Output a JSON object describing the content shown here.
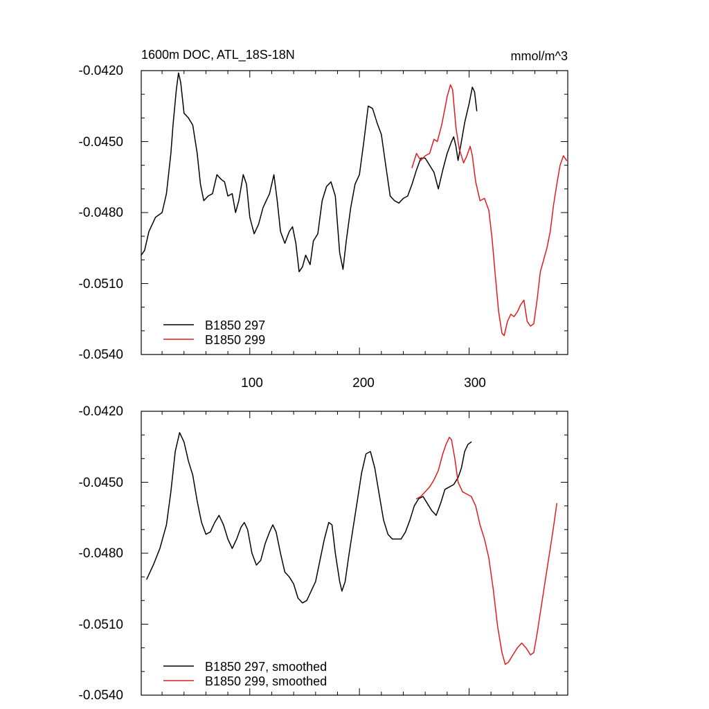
{
  "chart_data": [
    {
      "type": "line",
      "title": "1600m DOC, ATL_18S-18N",
      "units_label": "mmol/m^3",
      "xlim": [
        1,
        390
      ],
      "ylim": [
        -0.054,
        -0.042
      ],
      "x_ticks": [
        100,
        200,
        300
      ],
      "y_ticks": [
        -0.054,
        -0.051,
        -0.048,
        -0.045,
        -0.042
      ],
      "y_tick_labels": [
        "-0.0540",
        "-0.0510",
        "-0.0480",
        "-0.0450",
        "-0.0420"
      ],
      "x_tick_labels": [
        "100",
        "200",
        "300"
      ],
      "legend_position": "bottom-left",
      "series": [
        {
          "name": "B1850 297",
          "color": "#000000",
          "points": [
            [
              1,
              -0.0498
            ],
            [
              4,
              -0.0496
            ],
            [
              8,
              -0.0488
            ],
            [
              14,
              -0.0482
            ],
            [
              20,
              -0.048
            ],
            [
              24,
              -0.0472
            ],
            [
              28,
              -0.0455
            ],
            [
              30,
              -0.0443
            ],
            [
              33,
              -0.0428
            ],
            [
              35,
              -0.0421
            ],
            [
              37,
              -0.0425
            ],
            [
              40,
              -0.0438
            ],
            [
              44,
              -0.044
            ],
            [
              48,
              -0.0443
            ],
            [
              52,
              -0.0455
            ],
            [
              55,
              -0.0468
            ],
            [
              58,
              -0.0475
            ],
            [
              62,
              -0.0473
            ],
            [
              66,
              -0.0472
            ],
            [
              70,
              -0.0464
            ],
            [
              74,
              -0.0466
            ],
            [
              77,
              -0.0467
            ],
            [
              80,
              -0.0473
            ],
            [
              84,
              -0.0472
            ],
            [
              87,
              -0.048
            ],
            [
              90,
              -0.0475
            ],
            [
              94,
              -0.0464
            ],
            [
              97,
              -0.0468
            ],
            [
              100,
              -0.0482
            ],
            [
              104,
              -0.0489
            ],
            [
              108,
              -0.0485
            ],
            [
              112,
              -0.0478
            ],
            [
              115,
              -0.0475
            ],
            [
              118,
              -0.0472
            ],
            [
              122,
              -0.0464
            ],
            [
              125,
              -0.0475
            ],
            [
              128,
              -0.0488
            ],
            [
              132,
              -0.0493
            ],
            [
              136,
              -0.0488
            ],
            [
              139,
              -0.0486
            ],
            [
              142,
              -0.0493
            ],
            [
              145,
              -0.0505
            ],
            [
              148,
              -0.0503
            ],
            [
              151,
              -0.0498
            ],
            [
              155,
              -0.0502
            ],
            [
              158,
              -0.0492
            ],
            [
              162,
              -0.0489
            ],
            [
              166,
              -0.0475
            ],
            [
              170,
              -0.0469
            ],
            [
              174,
              -0.0467
            ],
            [
              178,
              -0.0473
            ],
            [
              182,
              -0.0497
            ],
            [
              185,
              -0.0504
            ],
            [
              188,
              -0.0492
            ],
            [
              192,
              -0.0478
            ],
            [
              196,
              -0.0468
            ],
            [
              200,
              -0.0464
            ],
            [
              204,
              -0.045
            ],
            [
              208,
              -0.0435
            ],
            [
              212,
              -0.0436
            ],
            [
              216,
              -0.0442
            ],
            [
              220,
              -0.0447
            ],
            [
              224,
              -0.046
            ],
            [
              228,
              -0.0473
            ],
            [
              232,
              -0.0475
            ],
            [
              236,
              -0.0476
            ],
            [
              240,
              -0.0474
            ],
            [
              244,
              -0.0473
            ],
            [
              248,
              -0.0468
            ],
            [
              252,
              -0.0462
            ],
            [
              256,
              -0.0457
            ],
            [
              260,
              -0.0457
            ],
            [
              264,
              -0.046
            ],
            [
              268,
              -0.0463
            ],
            [
              272,
              -0.047
            ],
            [
              276,
              -0.0462
            ],
            [
              280,
              -0.0455
            ],
            [
              284,
              -0.045
            ],
            [
              286,
              -0.0448
            ],
            [
              288,
              -0.0452
            ],
            [
              290,
              -0.0458
            ],
            [
              293,
              -0.045
            ],
            [
              296,
              -0.0442
            ],
            [
              300,
              -0.0434
            ],
            [
              303,
              -0.0427
            ],
            [
              305,
              -0.0429
            ],
            [
              307,
              -0.0437
            ]
          ]
        },
        {
          "name": "B1850 299",
          "color": "#e41a1c",
          "points": [
            [
              248,
              -0.0461
            ],
            [
              252,
              -0.0455
            ],
            [
              256,
              -0.0458
            ],
            [
              260,
              -0.0456
            ],
            [
              264,
              -0.0455
            ],
            [
              268,
              -0.0449
            ],
            [
              271,
              -0.045
            ],
            [
              275,
              -0.0443
            ],
            [
              278,
              -0.0436
            ],
            [
              280,
              -0.0431
            ],
            [
              283,
              -0.0426
            ],
            [
              285,
              -0.0428
            ],
            [
              288,
              -0.0444
            ],
            [
              291,
              -0.0453
            ],
            [
              295,
              -0.0459
            ],
            [
              298,
              -0.0456
            ],
            [
              301,
              -0.0452
            ],
            [
              303,
              -0.0456
            ],
            [
              306,
              -0.0467
            ],
            [
              310,
              -0.0475
            ],
            [
              314,
              -0.0474
            ],
            [
              318,
              -0.0479
            ],
            [
              321,
              -0.0491
            ],
            [
              324,
              -0.0507
            ],
            [
              327,
              -0.0522
            ],
            [
              330,
              -0.0531
            ],
            [
              332,
              -0.0532
            ],
            [
              335,
              -0.0526
            ],
            [
              338,
              -0.0523
            ],
            [
              341,
              -0.0524
            ],
            [
              344,
              -0.0522
            ],
            [
              347,
              -0.0519
            ],
            [
              350,
              -0.0517
            ],
            [
              353,
              -0.0526
            ],
            [
              356,
              -0.0528
            ],
            [
              359,
              -0.0527
            ],
            [
              362,
              -0.0517
            ],
            [
              365,
              -0.0505
            ],
            [
              368,
              -0.05
            ],
            [
              371,
              -0.0495
            ],
            [
              374,
              -0.0488
            ],
            [
              377,
              -0.0477
            ],
            [
              380,
              -0.0468
            ],
            [
              383,
              -0.046
            ],
            [
              386,
              -0.0456
            ],
            [
              389,
              -0.0458
            ]
          ]
        }
      ]
    },
    {
      "type": "line",
      "title": "",
      "xlim": [
        1,
        390
      ],
      "ylim": [
        -0.054,
        -0.042
      ],
      "x_ticks": [
        100,
        200,
        300
      ],
      "y_ticks": [
        -0.054,
        -0.051,
        -0.048,
        -0.045,
        -0.042
      ],
      "y_tick_labels": [
        "-0.0540",
        "-0.0510",
        "-0.0480",
        "-0.0450",
        "-0.0420"
      ],
      "legend_position": "bottom-left",
      "series": [
        {
          "name": "B1850 297, smoothed",
          "color": "#000000",
          "points": [
            [
              6,
              -0.0491
            ],
            [
              12,
              -0.0485
            ],
            [
              18,
              -0.0478
            ],
            [
              24,
              -0.0468
            ],
            [
              28,
              -0.0454
            ],
            [
              32,
              -0.0437
            ],
            [
              36,
              -0.0429
            ],
            [
              40,
              -0.0433
            ],
            [
              44,
              -0.0441
            ],
            [
              48,
              -0.0447
            ],
            [
              52,
              -0.0458
            ],
            [
              56,
              -0.0467
            ],
            [
              60,
              -0.0472
            ],
            [
              64,
              -0.0471
            ],
            [
              68,
              -0.0467
            ],
            [
              72,
              -0.0464
            ],
            [
              76,
              -0.0468
            ],
            [
              80,
              -0.0474
            ],
            [
              84,
              -0.0478
            ],
            [
              88,
              -0.0474
            ],
            [
              92,
              -0.0469
            ],
            [
              95,
              -0.0467
            ],
            [
              98,
              -0.047
            ],
            [
              102,
              -0.048
            ],
            [
              106,
              -0.0485
            ],
            [
              110,
              -0.0483
            ],
            [
              114,
              -0.0476
            ],
            [
              118,
              -0.0471
            ],
            [
              121,
              -0.0468
            ],
            [
              124,
              -0.0471
            ],
            [
              128,
              -0.048
            ],
            [
              132,
              -0.0488
            ],
            [
              136,
              -0.049
            ],
            [
              140,
              -0.0493
            ],
            [
              144,
              -0.0499
            ],
            [
              148,
              -0.0501
            ],
            [
              152,
              -0.05
            ],
            [
              156,
              -0.0496
            ],
            [
              160,
              -0.0492
            ],
            [
              164,
              -0.0483
            ],
            [
              168,
              -0.0474
            ],
            [
              172,
              -0.0467
            ],
            [
              175,
              -0.0468
            ],
            [
              178,
              -0.048
            ],
            [
              182,
              -0.0492
            ],
            [
              184,
              -0.0496
            ],
            [
              187,
              -0.0492
            ],
            [
              190,
              -0.0482
            ],
            [
              194,
              -0.047
            ],
            [
              198,
              -0.0458
            ],
            [
              202,
              -0.0446
            ],
            [
              206,
              -0.0438
            ],
            [
              210,
              -0.0437
            ],
            [
              214,
              -0.0444
            ],
            [
              218,
              -0.0455
            ],
            [
              222,
              -0.0466
            ],
            [
              226,
              -0.0472
            ],
            [
              230,
              -0.0474
            ],
            [
              234,
              -0.0474
            ],
            [
              238,
              -0.0474
            ],
            [
              242,
              -0.0471
            ],
            [
              246,
              -0.0466
            ],
            [
              250,
              -0.046
            ],
            [
              254,
              -0.0457
            ],
            [
              258,
              -0.0456
            ],
            [
              262,
              -0.0459
            ],
            [
              266,
              -0.0462
            ],
            [
              270,
              -0.0464
            ],
            [
              274,
              -0.0459
            ],
            [
              278,
              -0.0453
            ],
            [
              282,
              -0.0452
            ],
            [
              286,
              -0.0451
            ],
            [
              290,
              -0.0448
            ],
            [
              293,
              -0.0444
            ],
            [
              296,
              -0.0437
            ],
            [
              299,
              -0.0434
            ],
            [
              302,
              -0.0433
            ]
          ]
        },
        {
          "name": "B1850 299, smoothed",
          "color": "#e41a1c",
          "points": [
            [
              252,
              -0.0457
            ],
            [
              256,
              -0.0456
            ],
            [
              260,
              -0.0454
            ],
            [
              264,
              -0.0452
            ],
            [
              268,
              -0.0449
            ],
            [
              272,
              -0.0445
            ],
            [
              276,
              -0.0438
            ],
            [
              279,
              -0.0434
            ],
            [
              282,
              -0.0431
            ],
            [
              284,
              -0.0432
            ],
            [
              287,
              -0.044
            ],
            [
              290,
              -0.045
            ],
            [
              294,
              -0.0454
            ],
            [
              298,
              -0.0455
            ],
            [
              302,
              -0.0456
            ],
            [
              306,
              -0.046
            ],
            [
              310,
              -0.0468
            ],
            [
              314,
              -0.0474
            ],
            [
              318,
              -0.0482
            ],
            [
              322,
              -0.0495
            ],
            [
              326,
              -0.0511
            ],
            [
              330,
              -0.0522
            ],
            [
              333,
              -0.0527
            ],
            [
              336,
              -0.0526
            ],
            [
              340,
              -0.0523
            ],
            [
              344,
              -0.052
            ],
            [
              348,
              -0.0518
            ],
            [
              352,
              -0.052
            ],
            [
              356,
              -0.0523
            ],
            [
              359,
              -0.0522
            ],
            [
              362,
              -0.0514
            ],
            [
              366,
              -0.0502
            ],
            [
              370,
              -0.049
            ],
            [
              374,
              -0.0478
            ],
            [
              377,
              -0.0469
            ],
            [
              380,
              -0.0459
            ]
          ]
        }
      ]
    }
  ]
}
